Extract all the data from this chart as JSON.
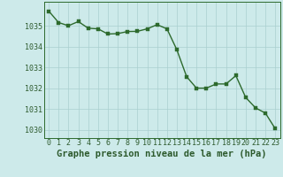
{
  "x": [
    0,
    1,
    2,
    3,
    4,
    5,
    6,
    7,
    8,
    9,
    10,
    11,
    12,
    13,
    14,
    15,
    16,
    17,
    18,
    19,
    20,
    21,
    22,
    23
  ],
  "y": [
    1035.7,
    1035.15,
    1035.0,
    1035.2,
    1034.88,
    1034.85,
    1034.6,
    1034.62,
    1034.72,
    1034.73,
    1034.85,
    1035.05,
    1034.85,
    1033.85,
    1032.55,
    1032.0,
    1032.0,
    1032.2,
    1032.2,
    1032.6,
    1031.55,
    1031.05,
    1030.8,
    1030.05
  ],
  "line_color": "#2d6a2d",
  "marker_color": "#2d6a2d",
  "bg_color": "#cdeaea",
  "grid_color": "#aacfcf",
  "xlabel": "Graphe pression niveau de la mer (hPa)",
  "xlabel_fontsize": 7.5,
  "ylim_min": 1029.6,
  "ylim_max": 1036.15,
  "ytick_vals": [
    1030,
    1031,
    1032,
    1033,
    1034,
    1035
  ],
  "xtick_vals": [
    0,
    1,
    2,
    3,
    4,
    5,
    6,
    7,
    8,
    9,
    10,
    11,
    12,
    13,
    14,
    15,
    16,
    17,
    18,
    19,
    20,
    21,
    22,
    23
  ],
  "xtick_labels": [
    "0",
    "1",
    "2",
    "3",
    "4",
    "5",
    "6",
    "7",
    "8",
    "9",
    "10",
    "11",
    "12",
    "13",
    "14",
    "15",
    "16",
    "17",
    "18",
    "19",
    "20",
    "21",
    "22",
    "23"
  ],
  "tick_fontsize": 6.0,
  "line_width": 1.0,
  "marker_size": 2.5,
  "border_color": "#2d6a2d"
}
